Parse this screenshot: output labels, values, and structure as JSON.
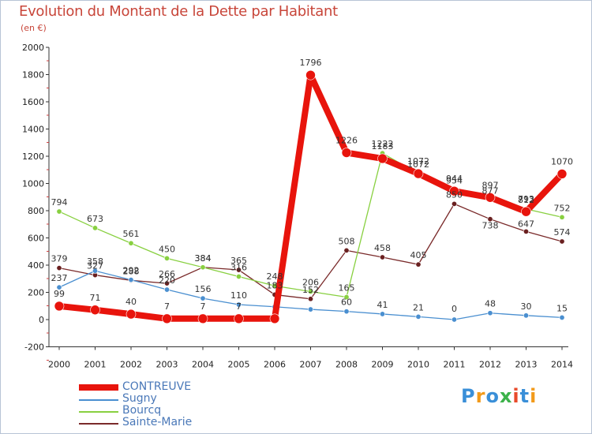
{
  "title": "Evolution du Montant de la Dette par Habitant",
  "unit": "(en €)",
  "logo": {
    "text": "Proxiti",
    "colors": [
      "#3a8fd8",
      "#f29a1a",
      "#3a8fd8",
      "#3cb24a",
      "#e84a2a",
      "#3a8fd8",
      "#f29a1a"
    ]
  },
  "chart_data": {
    "type": "line",
    "x": [
      "2000",
      "2001",
      "2002",
      "2003",
      "2004",
      "2005",
      "2006",
      "2007",
      "2008",
      "2009",
      "2010",
      "2011",
      "2012",
      "2013",
      "2014"
    ],
    "ylim": [
      -200,
      2000
    ],
    "yticks": [
      "-200",
      "0",
      "200",
      "400",
      "600",
      "800",
      "1000",
      "1200",
      "1400",
      "1600",
      "1800",
      "2000"
    ],
    "grid": false,
    "legend_position": "bottom-left",
    "series": [
      {
        "name": "CONTREUVE",
        "color": "#e8140c",
        "values": [
          99,
          71,
          40,
          7,
          7,
          7,
          7,
          1796,
          1226,
          1183,
          1072,
          944,
          897,
          793,
          1070
        ],
        "labels": [
          "99",
          "71",
          "40",
          "7",
          "7",
          "7",
          "",
          "1796",
          "1226",
          "1183",
          "1072",
          "944",
          "897",
          "793",
          "1070"
        ]
      },
      {
        "name": "Sugny",
        "color": "#4a8fd0",
        "values": [
          237,
          358,
          292,
          220,
          156,
          110,
          94,
          75,
          60,
          41,
          21,
          0,
          48,
          30,
          15
        ],
        "labels": [
          "237",
          "358",
          "292",
          "220",
          "156",
          "110",
          "",
          "",
          "60",
          "41",
          "21",
          "0",
          "48",
          "30",
          "15"
        ]
      },
      {
        "name": "Bourcq",
        "color": "#88d040",
        "values": [
          794,
          673,
          561,
          450,
          384,
          316,
          248,
          206,
          165,
          1222,
          1072,
          954,
          877,
          812,
          752
        ],
        "labels": [
          "794",
          "673",
          "561",
          "450",
          "384",
          "316",
          "248",
          "206",
          "165",
          "1222",
          "1072",
          "954",
          "877",
          "812",
          "752"
        ]
      },
      {
        "name": "Sainte-Marie",
        "color": "#7a2a2a",
        "values": [
          379,
          327,
          288,
          266,
          384,
          365,
          183,
          152,
          508,
          458,
          405,
          850,
          738,
          647,
          574
        ],
        "labels": [
          "379",
          "327",
          "288",
          "266",
          "384",
          "365",
          "183",
          "152",
          "508",
          "458",
          "405",
          "850",
          "738",
          "647",
          "574"
        ]
      }
    ]
  }
}
